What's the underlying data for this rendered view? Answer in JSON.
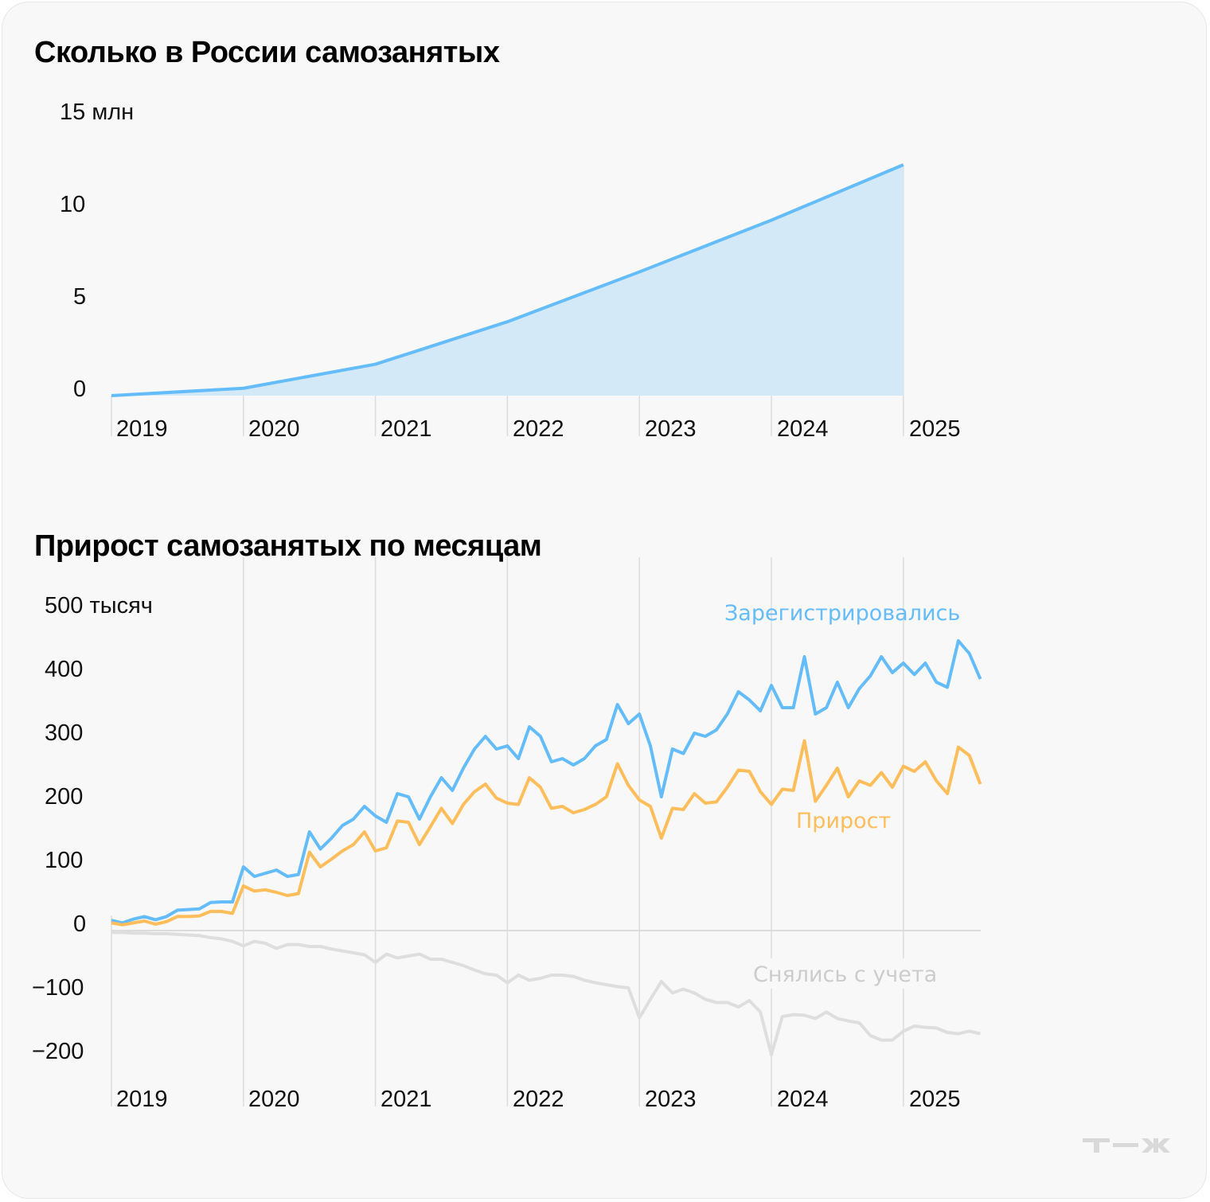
{
  "chart_data": [
    {
      "type": "area",
      "title": "Сколько в России самозанятых",
      "xlabel": "",
      "ylabel": "",
      "y_unit_label": "15 млн",
      "ylim": [
        0,
        15
      ],
      "yticks": [
        "0",
        "5",
        "10",
        "15 млн"
      ],
      "ytick_values": [
        0,
        5,
        10,
        15
      ],
      "grid": "vertical lines at each year",
      "categories": [
        "2019",
        "2020",
        "2021",
        "2022",
        "2023",
        "2024",
        "2025"
      ],
      "values": [
        0.0,
        0.4,
        1.7,
        4.0,
        6.7,
        9.5,
        12.5
      ],
      "color": "#64bcfa",
      "fill": "#d3e9f8"
    },
    {
      "type": "line",
      "title": "Прирост самозанятых по месяцам",
      "xlabel": "",
      "ylabel": "",
      "y_unit_label": "500 тысяч",
      "ylim": [
        -200,
        500
      ],
      "yticks": [
        "−200",
        "−100",
        "0",
        "100",
        "200",
        "300",
        "400",
        "500 тысяч"
      ],
      "ytick_values": [
        -200,
        -100,
        0,
        100,
        200,
        300,
        400,
        500
      ],
      "x_tick_labels": [
        "2019",
        "2020",
        "2021",
        "2022",
        "2023",
        "2024",
        "2025"
      ],
      "x_period": "monthly, Jan 2019 – Aug 2025",
      "grid": "vertical lines at each year, horizontal zero line",
      "series": [
        {
          "name": "Зарегистрировались",
          "color": "#64bcfa",
          "values": [
            16,
            12,
            18,
            22,
            17,
            22,
            32,
            33,
            34,
            44,
            45,
            45,
            100,
            85,
            90,
            95,
            85,
            88,
            155,
            128,
            145,
            165,
            175,
            195,
            180,
            170,
            215,
            210,
            175,
            210,
            240,
            220,
            255,
            285,
            305,
            285,
            290,
            270,
            320,
            305,
            265,
            270,
            260,
            270,
            290,
            300,
            355,
            325,
            340,
            290,
            210,
            285,
            278,
            310,
            305,
            315,
            340,
            375,
            362,
            345,
            385,
            350,
            350,
            430,
            340,
            350,
            390,
            350,
            380,
            400,
            430,
            405,
            420,
            402,
            420,
            390,
            382,
            455,
            435,
            395
          ],
          "label_position": "upper right"
        },
        {
          "name": "Прирост",
          "color": "#ffbd5b",
          "values": [
            12,
            9,
            12,
            15,
            10,
            14,
            22,
            22,
            23,
            30,
            30,
            27,
            70,
            62,
            64,
            60,
            55,
            58,
            123,
            100,
            112,
            125,
            135,
            155,
            125,
            130,
            172,
            170,
            135,
            163,
            192,
            168,
            198,
            218,
            230,
            208,
            200,
            198,
            240,
            225,
            192,
            195,
            185,
            190,
            198,
            210,
            262,
            228,
            205,
            195,
            145,
            192,
            190,
            215,
            200,
            202,
            225,
            252,
            250,
            218,
            198,
            222,
            220,
            298,
            203,
            228,
            255,
            210,
            235,
            228,
            248,
            225,
            258,
            250,
            265,
            235,
            215,
            288,
            275,
            230
          ],
          "label_position": "middle right"
        },
        {
          "name": "Снялись с учета",
          "color": "#dedede",
          "values": [
            -3,
            -3,
            -4,
            -4,
            -5,
            -5,
            -6,
            -7,
            -8,
            -11,
            -13,
            -17,
            -24,
            -17,
            -20,
            -28,
            -22,
            -22,
            -25,
            -25,
            -29,
            -32,
            -35,
            -38,
            -50,
            -37,
            -43,
            -40,
            -37,
            -45,
            -45,
            -50,
            -55,
            -62,
            -68,
            -70,
            -82,
            -70,
            -78,
            -75,
            -70,
            -70,
            -72,
            -78,
            -82,
            -85,
            -88,
            -90,
            -137,
            -108,
            -80,
            -98,
            -92,
            -98,
            -108,
            -113,
            -113,
            -120,
            -110,
            -128,
            -195,
            -135,
            -132,
            -133,
            -138,
            -128,
            -138,
            -142,
            -145,
            -165,
            -172,
            -172,
            -158,
            -150,
            -152,
            -153,
            -160,
            -162,
            -158,
            -162
          ],
          "label_position": "lower right"
        }
      ]
    }
  ],
  "charts": {
    "top": {
      "title": "Сколько в России самозанятых",
      "y_labels": [
        "15 млн",
        "10",
        "5",
        "0"
      ],
      "x_labels": [
        "2019",
        "2020",
        "2021",
        "2022",
        "2023",
        "2024",
        "2025"
      ]
    },
    "bottom": {
      "title": "Прирост самозанятых по месяцам",
      "y_labels": [
        "500 тысяч",
        "400",
        "300",
        "200",
        "100",
        "0",
        "−100",
        "−200"
      ],
      "x_labels": [
        "2019",
        "2020",
        "2021",
        "2022",
        "2023",
        "2024",
        "2025"
      ],
      "legend": {
        "registered": "Зарегистрировались",
        "growth": "Прирост",
        "deregistered": "Снялись с учета"
      }
    }
  },
  "brand": {
    "logo_text": "Т—Ж",
    "logo_color": "#d9d9d9"
  },
  "colors": {
    "background": "#f8f8f8",
    "blue": "#64bcfa",
    "blue_fill": "#d3e9f8",
    "orange": "#ffbd5b",
    "gray_line": "#dedede",
    "grid": "#dcdcdc",
    "text": "#111111"
  }
}
